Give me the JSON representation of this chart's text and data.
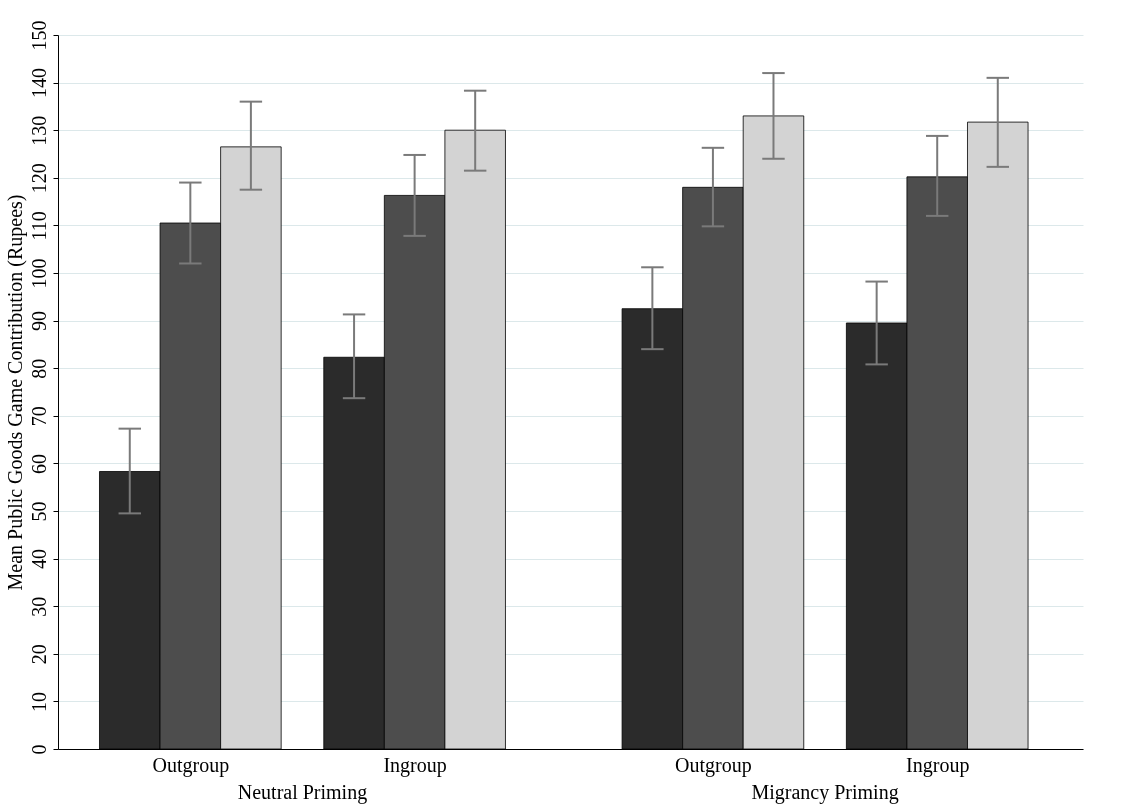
{
  "chart_data": {
    "type": "bar",
    "ylabel": "Mean Public Goods Game Contribution (Rupees)",
    "categories": [
      "Outgroup",
      "Ingroup",
      "Outgroup",
      "Ingroup"
    ],
    "series": [
      {
        "color": "#2b2b2b",
        "values": [
          58.3,
          82.3,
          92.5,
          89.5
        ],
        "errors": [
          [
            49.5,
            67.3
          ],
          [
            73.7,
            91.3
          ],
          [
            84,
            101.2
          ],
          [
            80.8,
            98.2
          ]
        ]
      },
      {
        "color": "#4d4d4d",
        "values": [
          110.5,
          116.3,
          118,
          120.2
        ],
        "errors": [
          [
            102,
            119
          ],
          [
            107.8,
            124.8
          ],
          [
            109.8,
            126.3
          ],
          [
            112,
            128.8
          ]
        ]
      },
      {
        "color": "#d3d3d3",
        "values": [
          126.5,
          130,
          133,
          131.7
        ],
        "errors": [
          [
            117.5,
            136
          ],
          [
            121.5,
            138.3
          ],
          [
            124,
            142
          ],
          [
            122.3,
            141
          ]
        ]
      }
    ],
    "annotations": [
      "Neutral Priming",
      "Migrancy Priming"
    ],
    "ylim": [
      0,
      150
    ],
    "yticks": [
      0,
      10,
      20,
      30,
      40,
      50,
      60,
      70,
      80,
      90,
      100,
      110,
      120,
      130,
      140,
      150
    ],
    "grid": "y"
  }
}
